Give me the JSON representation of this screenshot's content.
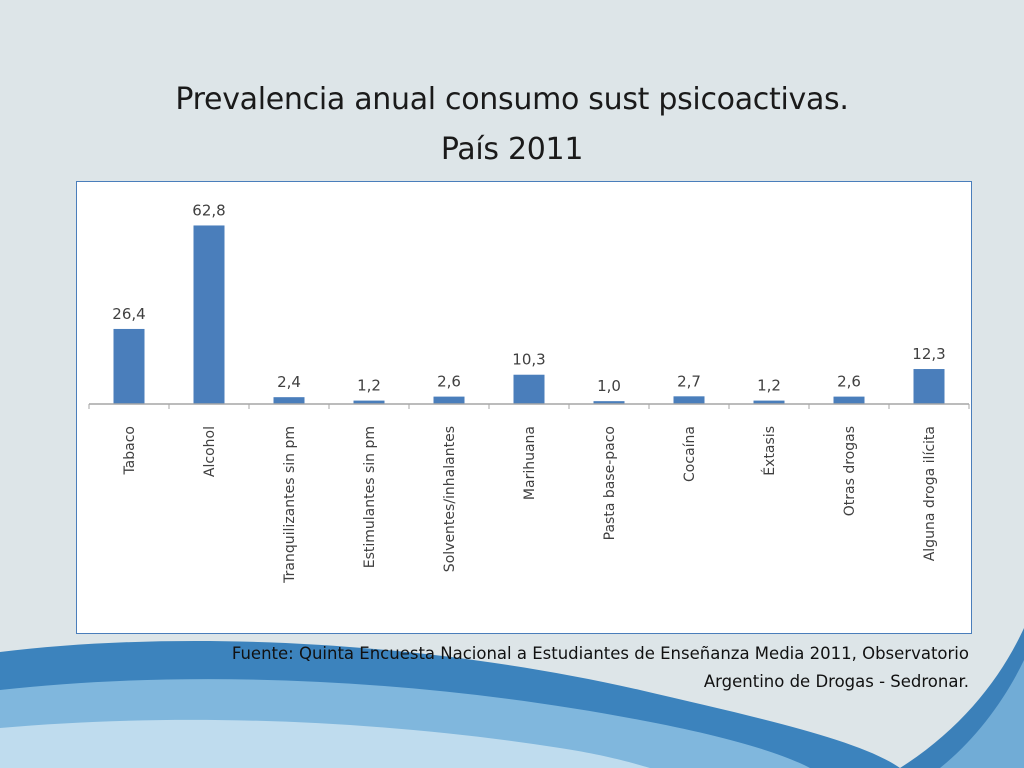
{
  "slide": {
    "title_line1": "Prevalencia anual consumo  sust psicoactivas.",
    "title_line2": "País 2011",
    "source_line1": "Fuente: Quinta Encuesta Nacional a Estudiantes de Enseñanza Media 2011, Observatorio",
    "source_line2": "Argentino de Drogas -  Sedronar."
  },
  "colors": {
    "bar": "#4a7ebb",
    "background": "#dde5e8",
    "wave_dark": "#1f6fb0",
    "wave_light": "#7fb6dd"
  },
  "chart_data": {
    "type": "bar",
    "title": "",
    "xlabel": "",
    "ylabel": "",
    "grid": false,
    "legend": "none",
    "ylim": [
      0,
      70
    ],
    "categories": [
      "Tabaco",
      "Alcohol",
      "Tranquilizantes sin pm",
      "Estimulantes sin pm",
      "Solventes/inhalantes",
      "Marihuana",
      "Pasta base-paco",
      "Cocaína",
      "Éxtasis",
      "Otras drogas",
      "Alguna droga ilícita"
    ],
    "values": [
      26.4,
      62.8,
      2.4,
      1.2,
      2.6,
      10.3,
      1.0,
      2.7,
      1.2,
      2.6,
      12.3
    ],
    "value_labels": [
      "26,4",
      "62,8",
      "2,4",
      "1,2",
      "2,6",
      "10,3",
      "1,0",
      "2,7",
      "1,2",
      "2,6",
      "12,3"
    ]
  }
}
